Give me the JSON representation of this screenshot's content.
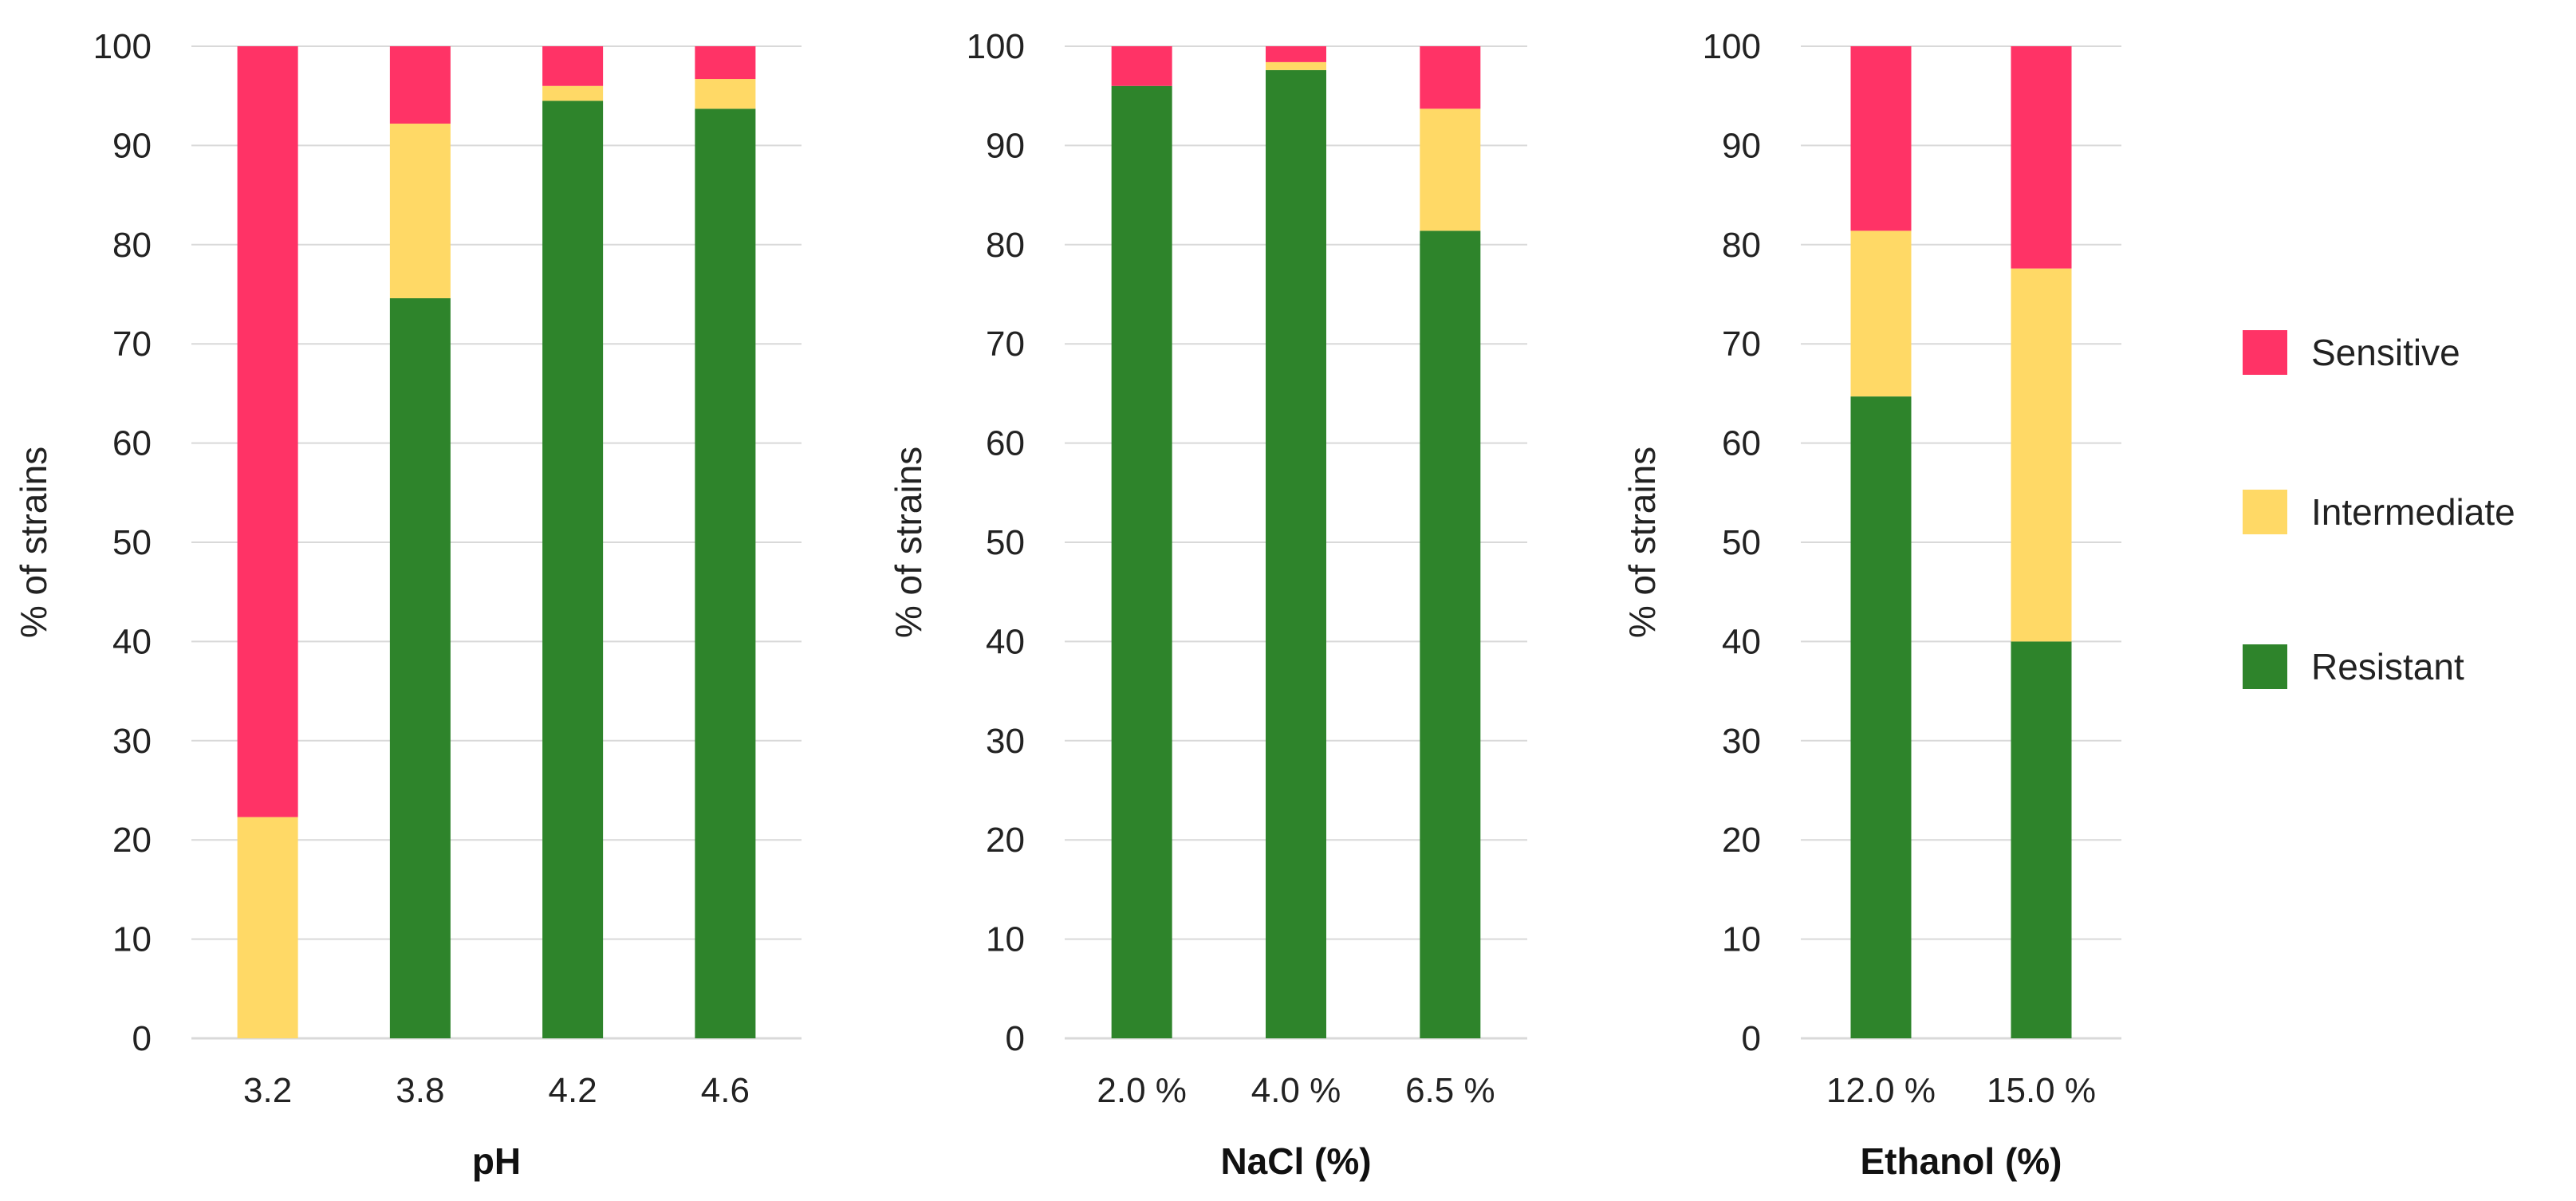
{
  "chart_data": [
    {
      "type": "bar",
      "stacked": true,
      "xlabel": "pH",
      "ylabel": "% of strains",
      "ylim": [
        0,
        100
      ],
      "yticks": [
        0,
        10,
        20,
        30,
        40,
        50,
        60,
        70,
        80,
        90,
        100
      ],
      "grid": true,
      "categories": [
        "3.2",
        "3.8",
        "4.2",
        "4.6"
      ],
      "series": [
        {
          "name": "Resistant",
          "values": [
            0,
            74.6,
            94.5,
            93.7
          ]
        },
        {
          "name": "Intermediate",
          "values": [
            22.3,
            17.6,
            1.5,
            3.0
          ]
        },
        {
          "name": "Sensitive",
          "values": [
            77.7,
            7.8,
            4.0,
            3.3
          ]
        }
      ]
    },
    {
      "type": "bar",
      "stacked": true,
      "xlabel": "NaCl (%)",
      "ylabel": "% of strains",
      "ylim": [
        0,
        100
      ],
      "yticks": [
        0,
        10,
        20,
        30,
        40,
        50,
        60,
        70,
        80,
        90,
        100
      ],
      "grid": true,
      "categories": [
        "2.0 %",
        "4.0 %",
        "6.5 %"
      ],
      "series": [
        {
          "name": "Resistant",
          "values": [
            96.0,
            97.6,
            81.4
          ]
        },
        {
          "name": "Intermediate",
          "values": [
            0,
            0.8,
            12.3
          ]
        },
        {
          "name": "Sensitive",
          "values": [
            4.0,
            1.6,
            6.3
          ]
        }
      ]
    },
    {
      "type": "bar",
      "stacked": true,
      "xlabel": "Ethanol (%)",
      "ylabel": "% of strains",
      "ylim": [
        0,
        100
      ],
      "yticks": [
        0,
        10,
        20,
        30,
        40,
        50,
        60,
        70,
        80,
        90,
        100
      ],
      "grid": true,
      "categories": [
        "12.0 %",
        "15.0 %"
      ],
      "series": [
        {
          "name": "Resistant",
          "values": [
            64.7,
            40.0
          ]
        },
        {
          "name": "Intermediate",
          "values": [
            16.7,
            37.6
          ]
        },
        {
          "name": "Sensitive",
          "values": [
            18.6,
            22.4
          ]
        }
      ]
    }
  ],
  "legend": {
    "position": "right",
    "items": [
      {
        "label": "Sensitive",
        "color": "#ff3366"
      },
      {
        "label": "Intermediate",
        "color": "#ffd966"
      },
      {
        "label": "Resistant",
        "color": "#2e842b"
      }
    ]
  },
  "colors": {
    "Resistant": "#2e842b",
    "Intermediate": "#ffd966",
    "Sensitive": "#ff3366"
  }
}
